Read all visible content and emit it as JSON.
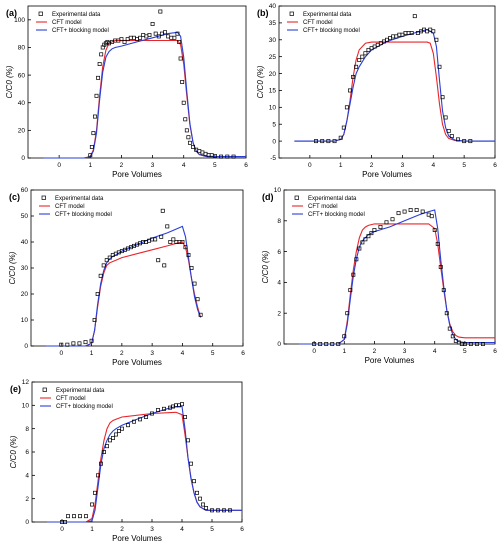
{
  "figure": {
    "panel_count": 5
  },
  "colors": {
    "experimental": "#000000",
    "cft": "#e8262a",
    "cft_blocking": "#2a3fd6",
    "axis": "#000000"
  },
  "chart_data": [
    {
      "id": "a",
      "panel_label": "(a)",
      "type": "line",
      "xlabel": "Pore Volumes",
      "ylabel": "C/C0 (%)",
      "xlim": [
        -1,
        6
      ],
      "ylim": [
        0,
        110
      ],
      "x_ticks": [
        0,
        1,
        2,
        3,
        4,
        5,
        6
      ],
      "y_ticks": [
        0,
        20,
        40,
        60,
        80,
        100
      ],
      "legend": [
        "Experimental data",
        "CFT model",
        "CFT+ blocking model"
      ],
      "experimental": {
        "name": "Experimental data",
        "x": [
          1.0,
          1.05,
          1.1,
          1.15,
          1.2,
          1.25,
          1.3,
          1.35,
          1.4,
          1.45,
          1.5,
          1.55,
          1.6,
          1.7,
          1.8,
          1.9,
          2.0,
          2.1,
          2.2,
          2.3,
          2.4,
          2.5,
          2.6,
          2.7,
          2.8,
          2.9,
          3.0,
          3.1,
          3.2,
          3.25,
          3.3,
          3.4,
          3.5,
          3.6,
          3.7,
          3.8,
          3.85,
          3.9,
          3.95,
          4.0,
          4.05,
          4.1,
          4.15,
          4.2,
          4.3,
          4.4,
          4.5,
          4.6,
          4.7,
          4.8,
          4.9,
          5.0,
          5.2,
          5.4,
          5.6
        ],
        "y": [
          2,
          8,
          18,
          30,
          45,
          58,
          68,
          75,
          80,
          82,
          83,
          84,
          83,
          84,
          85,
          85,
          86,
          84,
          86,
          87,
          87,
          86,
          87,
          89,
          88,
          89,
          97,
          90,
          88,
          106,
          90,
          91,
          88,
          87,
          87,
          90,
          84,
          72,
          55,
          40,
          28,
          20,
          15,
          11,
          8,
          6,
          5,
          4,
          3,
          2,
          2,
          1.5,
          1,
          1,
          1
        ]
      },
      "cft": {
        "name": "CFT model",
        "x": [
          -0.5,
          0.8,
          1.0,
          1.1,
          1.2,
          1.3,
          1.4,
          1.5,
          1.6,
          1.7,
          1.8,
          2.0,
          3.0,
          3.8,
          3.9,
          4.0,
          4.1,
          4.2,
          4.3,
          4.4,
          4.5,
          4.7,
          5.0,
          6.0
        ],
        "y": [
          0,
          0,
          1,
          6,
          20,
          45,
          66,
          78,
          83,
          84,
          85,
          85,
          85,
          85,
          82,
          68,
          45,
          24,
          11,
          5,
          2.5,
          1.2,
          1,
          1
        ]
      },
      "cft_blocking": {
        "name": "CFT+ blocking model",
        "x": [
          -0.5,
          0.8,
          1.0,
          1.1,
          1.2,
          1.3,
          1.4,
          1.5,
          1.6,
          1.7,
          1.8,
          2.0,
          2.5,
          3.0,
          3.5,
          3.8,
          3.9,
          4.0,
          4.1,
          4.2,
          4.3,
          4.4,
          4.5,
          4.7,
          5.0,
          6.0
        ],
        "y": [
          0,
          0,
          1,
          5,
          18,
          42,
          62,
          73,
          77,
          79,
          80,
          81,
          84,
          87,
          90,
          91,
          88,
          73,
          48,
          25,
          11,
          5,
          2.5,
          1.2,
          1,
          1
        ]
      }
    },
    {
      "id": "b",
      "panel_label": "(b)",
      "type": "line",
      "xlabel": "Pore Volumes",
      "ylabel": "C/C0 (%)",
      "xlim": [
        -1,
        6
      ],
      "ylim": [
        -5,
        40
      ],
      "x_ticks": [
        0,
        1,
        2,
        3,
        4,
        5,
        6
      ],
      "y_ticks": [
        -5,
        0,
        5,
        10,
        15,
        20,
        25,
        30,
        35,
        40
      ],
      "legend": [
        "Experimental data",
        "CFT model",
        "CFT+ blocking model"
      ],
      "experimental": {
        "name": "Experimental data",
        "x": [
          0.2,
          0.4,
          0.6,
          0.8,
          1.0,
          1.1,
          1.2,
          1.3,
          1.4,
          1.5,
          1.6,
          1.7,
          1.8,
          1.9,
          2.0,
          2.1,
          2.2,
          2.3,
          2.4,
          2.5,
          2.6,
          2.7,
          2.8,
          2.9,
          3.0,
          3.1,
          3.2,
          3.3,
          3.4,
          3.5,
          3.6,
          3.7,
          3.8,
          3.9,
          4.0,
          4.1,
          4.2,
          4.3,
          4.4,
          4.5,
          4.6,
          4.8,
          5.0,
          5.2
        ],
        "y": [
          0,
          0,
          0,
          0,
          1,
          4,
          10,
          15,
          19,
          22,
          24,
          25,
          26,
          27,
          27.5,
          28,
          28.5,
          29,
          29.5,
          30,
          30.5,
          31,
          31,
          31.5,
          31.5,
          32,
          32,
          32,
          37,
          32,
          32.5,
          33,
          32.5,
          33,
          32.5,
          30,
          22,
          13,
          7,
          3,
          1.5,
          0.5,
          0,
          0
        ]
      },
      "cft": {
        "name": "CFT model",
        "x": [
          -0.5,
          0.8,
          1.0,
          1.1,
          1.2,
          1.3,
          1.4,
          1.5,
          1.6,
          1.8,
          2.0,
          3.0,
          3.8,
          3.9,
          4.0,
          4.1,
          4.2,
          4.3,
          4.4,
          4.5,
          4.7,
          5.0,
          6.0
        ],
        "y": [
          0,
          0,
          0.5,
          2,
          6,
          12,
          19,
          24,
          27,
          29,
          29.3,
          29.3,
          29.3,
          29,
          26,
          19,
          11,
          5,
          2,
          0.8,
          0.2,
          0,
          0
        ]
      },
      "cft_blocking": {
        "name": "CFT+ blocking model",
        "x": [
          -0.5,
          0.8,
          1.0,
          1.1,
          1.2,
          1.3,
          1.4,
          1.5,
          1.6,
          1.8,
          2.0,
          2.5,
          3.0,
          3.5,
          3.8,
          4.0,
          4.1,
          4.2,
          4.3,
          4.4,
          4.5,
          4.7,
          5.0,
          6.0
        ],
        "y": [
          0,
          0,
          0.5,
          2,
          6,
          11,
          16,
          20,
          22,
          25,
          27,
          29.5,
          31,
          32.3,
          33,
          32,
          28,
          18,
          9,
          4,
          1.5,
          0.3,
          0,
          0
        ]
      }
    },
    {
      "id": "c",
      "panel_label": "(c)",
      "type": "line",
      "xlabel": "Pore Volumes",
      "ylabel": "C/C0 (%)",
      "xlim": [
        -1,
        6
      ],
      "ylim": [
        0,
        60
      ],
      "x_ticks": [
        0,
        1,
        2,
        3,
        4,
        5,
        6
      ],
      "y_ticks": [
        0,
        10,
        20,
        30,
        40,
        50,
        60
      ],
      "legend": [
        "Experimental data",
        "CFT model",
        "CFT+ blocking model"
      ],
      "experimental": {
        "name": "Experimental data",
        "x": [
          0.0,
          0.2,
          0.4,
          0.6,
          0.8,
          1.0,
          1.1,
          1.2,
          1.3,
          1.4,
          1.5,
          1.6,
          1.7,
          1.8,
          1.9,
          2.0,
          2.1,
          2.2,
          2.3,
          2.4,
          2.5,
          2.6,
          2.7,
          2.8,
          2.9,
          3.0,
          3.1,
          3.2,
          3.3,
          3.35,
          3.4,
          3.5,
          3.6,
          3.7,
          3.8,
          3.9,
          4.0,
          4.1,
          4.2,
          4.3,
          4.4,
          4.5,
          4.6
        ],
        "y": [
          0.5,
          0.5,
          1,
          1,
          1.5,
          2,
          10,
          20,
          27,
          31,
          33,
          34,
          35,
          35.5,
          36,
          36.5,
          37,
          37.5,
          38,
          38.5,
          39,
          39.5,
          40,
          40,
          40.5,
          41,
          41,
          33,
          42,
          52,
          31,
          46,
          40,
          41,
          40,
          40,
          40,
          38,
          35,
          30,
          24,
          18,
          12
        ]
      },
      "cft": {
        "name": "CFT model",
        "x": [
          -0.5,
          0.8,
          1.0,
          1.1,
          1.2,
          1.3,
          1.4,
          1.5,
          1.6,
          1.7,
          1.8,
          2.0,
          2.5,
          3.0,
          3.5,
          3.8,
          4.0,
          4.1,
          4.2,
          4.3,
          4.4,
          4.5,
          4.6
        ],
        "y": [
          0,
          0,
          1,
          6,
          15,
          23,
          28,
          31,
          32,
          32.5,
          33,
          34,
          35.5,
          37,
          38.5,
          39.5,
          40,
          38,
          33,
          26,
          20,
          15,
          11
        ]
      },
      "cft_blocking": {
        "name": "CFT+ blocking model",
        "x": [
          -0.5,
          0.8,
          1.0,
          1.1,
          1.2,
          1.3,
          1.4,
          1.5,
          1.6,
          1.7,
          1.8,
          2.0,
          2.5,
          3.0,
          3.5,
          3.8,
          4.0,
          4.1,
          4.2,
          4.3,
          4.4,
          4.5,
          4.6
        ],
        "y": [
          0,
          0,
          1,
          6,
          16,
          24,
          29,
          32,
          33.5,
          34.5,
          35,
          36.5,
          39,
          41.5,
          43.5,
          45,
          46,
          42,
          34,
          26,
          19,
          14,
          11
        ]
      }
    },
    {
      "id": "d",
      "panel_label": "(d)",
      "type": "line",
      "xlabel": "Pore Volumes",
      "ylabel": "C/C0 (%)",
      "xlim": [
        -1,
        6
      ],
      "ylim": [
        0,
        10
      ],
      "x_ticks": [
        0,
        1,
        2,
        3,
        4,
        5,
        6
      ],
      "y_ticks": [
        0,
        2,
        4,
        6,
        8,
        10
      ],
      "legend": [
        "Experimental data",
        "CFT model",
        "CFT+ blocking model"
      ],
      "experimental": {
        "name": "Experimental data",
        "x": [
          0.0,
          0.2,
          0.4,
          0.6,
          0.8,
          1.0,
          1.1,
          1.2,
          1.3,
          1.4,
          1.5,
          1.6,
          1.7,
          1.8,
          1.9,
          2.0,
          2.2,
          2.4,
          2.6,
          2.8,
          3.0,
          3.2,
          3.4,
          3.6,
          3.8,
          3.9,
          4.0,
          4.1,
          4.2,
          4.3,
          4.4,
          4.5,
          4.6,
          4.7,
          4.8,
          4.9,
          5.0,
          5.2,
          5.4,
          5.6
        ],
        "y": [
          0,
          0,
          0,
          0,
          0,
          0.5,
          2,
          3.5,
          4.5,
          5.5,
          6.2,
          6.6,
          6.8,
          7.0,
          7.2,
          7.4,
          7.6,
          7.9,
          8.1,
          8.5,
          8.6,
          8.7,
          8.7,
          8.6,
          8.4,
          8.3,
          7.4,
          6.5,
          5.0,
          3.5,
          2.0,
          1.0,
          0.5,
          0.2,
          0.1,
          0,
          0,
          0,
          0,
          0
        ]
      },
      "cft": {
        "name": "CFT model",
        "x": [
          -0.5,
          0.8,
          1.0,
          1.1,
          1.2,
          1.3,
          1.4,
          1.5,
          1.6,
          1.7,
          1.8,
          2.0,
          3.0,
          3.8,
          4.0,
          4.1,
          4.2,
          4.3,
          4.4,
          4.5,
          4.6,
          4.7,
          4.8,
          5.0,
          6.0
        ],
        "y": [
          0,
          0,
          0.3,
          1.5,
          3.2,
          4.8,
          6.0,
          6.9,
          7.4,
          7.6,
          7.7,
          7.8,
          7.8,
          7.8,
          7.5,
          6.5,
          5.0,
          3.5,
          2.2,
          1.3,
          0.8,
          0.55,
          0.45,
          0.4,
          0.4
        ]
      },
      "cft_blocking": {
        "name": "CFT+ blocking model",
        "x": [
          -0.5,
          0.8,
          1.0,
          1.1,
          1.2,
          1.3,
          1.4,
          1.5,
          1.6,
          1.7,
          1.8,
          2.0,
          2.5,
          3.0,
          3.5,
          3.8,
          4.0,
          4.1,
          4.2,
          4.3,
          4.4,
          4.5,
          4.6,
          4.7,
          4.8,
          5.0,
          6.0
        ],
        "y": [
          0,
          0,
          0.3,
          1.3,
          2.9,
          4.4,
          5.5,
          6.3,
          6.7,
          6.9,
          7.1,
          7.3,
          7.6,
          8.0,
          8.4,
          8.6,
          8.7,
          7.5,
          5.5,
          3.7,
          2.2,
          1.2,
          0.6,
          0.3,
          0.15,
          0.1,
          0.1
        ]
      }
    },
    {
      "id": "e",
      "panel_label": "(e)",
      "type": "line",
      "xlabel": "Pore Volumes",
      "ylabel": "C/C0 (%)",
      "xlim": [
        -1,
        6
      ],
      "ylim": [
        0,
        12
      ],
      "x_ticks": [
        0,
        1,
        2,
        3,
        4,
        5,
        6
      ],
      "y_ticks": [
        0,
        2,
        4,
        6,
        8,
        10,
        12
      ],
      "legend": [
        "Experimental data",
        "CFT model",
        "CFT+ blocking model"
      ],
      "experimental": {
        "name": "Experimental data",
        "x": [
          0.0,
          0.1,
          0.2,
          0.4,
          0.6,
          0.8,
          1.0,
          1.1,
          1.2,
          1.3,
          1.4,
          1.5,
          1.6,
          1.7,
          1.8,
          1.9,
          2.0,
          2.2,
          2.4,
          2.6,
          2.8,
          3.0,
          3.2,
          3.4,
          3.6,
          3.7,
          3.8,
          3.9,
          4.0,
          4.1,
          4.2,
          4.3,
          4.4,
          4.5,
          4.6,
          4.7,
          4.8,
          5.0,
          5.2,
          5.4,
          5.6
        ],
        "y": [
          0,
          0,
          0.5,
          0.5,
          0.5,
          0.5,
          1.5,
          2.5,
          4,
          5,
          6,
          6.5,
          7,
          7.2,
          7.5,
          7.8,
          8,
          8.3,
          8.6,
          8.8,
          9,
          9.3,
          9.6,
          9.7,
          9.8,
          9.9,
          10,
          10,
          10.1,
          9,
          7,
          5,
          3.5,
          2.5,
          2,
          1.5,
          1.2,
          1,
          1,
          1,
          1
        ]
      },
      "cft": {
        "name": "CFT model",
        "x": [
          -0.5,
          0.8,
          1.0,
          1.1,
          1.2,
          1.3,
          1.4,
          1.5,
          1.6,
          1.7,
          1.8,
          2.0,
          3.0,
          3.8,
          4.0,
          4.1,
          4.2,
          4.3,
          4.4,
          4.5,
          4.6,
          4.8,
          5.0,
          6.0
        ],
        "y": [
          0,
          0,
          0.3,
          1.5,
          3.5,
          5.5,
          7,
          8,
          8.5,
          8.7,
          8.8,
          9,
          9.3,
          9.4,
          9.2,
          7.5,
          5.5,
          3.8,
          2.5,
          1.7,
          1.3,
          1,
          1,
          1
        ]
      },
      "cft_blocking": {
        "name": "CFT+ blocking model",
        "x": [
          -0.5,
          0.8,
          1.0,
          1.1,
          1.2,
          1.3,
          1.4,
          1.5,
          1.6,
          1.7,
          1.8,
          2.0,
          2.5,
          3.0,
          3.5,
          3.8,
          4.0,
          4.1,
          4.2,
          4.3,
          4.4,
          4.5,
          4.6,
          4.8,
          5.0,
          6.0
        ],
        "y": [
          0,
          0,
          0.1,
          1,
          3,
          5,
          6.3,
          7,
          7.5,
          7.8,
          8,
          8.3,
          8.8,
          9.3,
          9.7,
          9.9,
          9.9,
          8,
          5.5,
          3.7,
          2.5,
          1.7,
          1.3,
          1,
          1,
          1
        ]
      }
    }
  ]
}
